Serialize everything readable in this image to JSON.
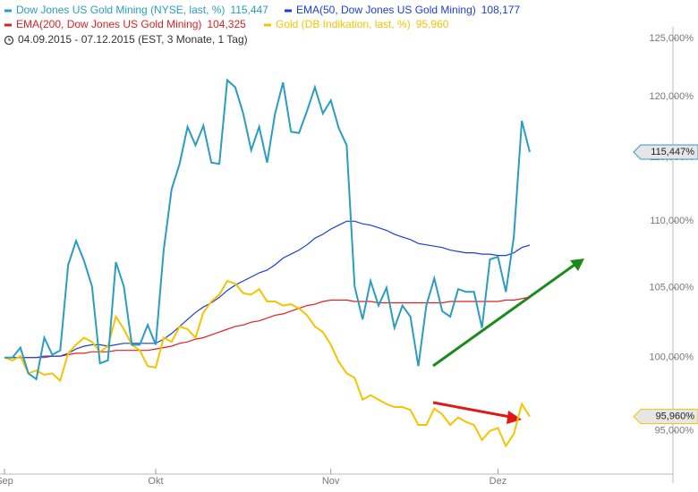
{
  "chart_data": {
    "type": "line",
    "subtitle": "04.09.2015 - 07.12.2015 (EST, 3 Monate, 1 Tag)",
    "log_scale": true,
    "grid": false,
    "ylim": [
      91.6,
      128.4
    ],
    "yticks": [
      {
        "value": 95,
        "label": "95,000%"
      },
      {
        "value": 100,
        "label": "100,000%"
      },
      {
        "value": 105,
        "label": "105,000%"
      },
      {
        "value": 110,
        "label": "110,000%"
      },
      {
        "value": 115,
        "label": "115,000%"
      },
      {
        "value": 120,
        "label": "120,000%"
      },
      {
        "value": 125,
        "label": "125,000%"
      }
    ],
    "categories": [
      "Sep",
      null,
      null,
      null,
      null,
      null,
      null,
      null,
      null,
      null,
      null,
      null,
      null,
      null,
      null,
      null,
      null,
      null,
      null,
      "Okt",
      null,
      null,
      null,
      null,
      null,
      null,
      null,
      null,
      null,
      null,
      null,
      null,
      null,
      null,
      null,
      null,
      null,
      null,
      null,
      null,
      null,
      "Nov",
      null,
      null,
      null,
      null,
      null,
      null,
      null,
      null,
      null,
      null,
      null,
      null,
      null,
      null,
      null,
      null,
      null,
      null,
      null,
      null,
      "Dez",
      null,
      null,
      null,
      null
    ],
    "series": [
      {
        "name": "Dow Jones US Gold Mining (NYSE, last, %)",
        "legend_value": "115,447",
        "end_label": "115,447%",
        "color": "#2a9dc0",
        "values": [
          100.0,
          100.0,
          100.7,
          98.9,
          98.5,
          101.4,
          100.2,
          100.5,
          106.7,
          108.5,
          107.0,
          105.1,
          99.6,
          99.8,
          106.9,
          105.1,
          100.9,
          100.9,
          102.3,
          100.9,
          107.8,
          112.5,
          114.5,
          117.5,
          116.0,
          117.6,
          114.6,
          114.5,
          121.4,
          120.8,
          118.6,
          115.6,
          117.5,
          114.6,
          118.6,
          121.2,
          117.1,
          117.0,
          118.8,
          120.8,
          118.6,
          119.7,
          117.4,
          116.0,
          105.1,
          102.7,
          105.5,
          103.7,
          105.0,
          102.1,
          103.7,
          102.9,
          99.4,
          103.7,
          105.7,
          103.3,
          102.9,
          104.9,
          104.7,
          104.7,
          102.1,
          107.1,
          107.3,
          104.7,
          108.8,
          118.0,
          115.447
        ]
      },
      {
        "name": "EMA(50, Dow Jones US Gold Mining)",
        "legend_value": "108,177",
        "color": "#1a3fd6",
        "values": [
          100.0,
          100.0,
          100.0,
          100.0,
          100.0,
          100.1,
          100.1,
          100.1,
          100.3,
          100.6,
          100.8,
          100.9,
          100.9,
          100.8,
          100.9,
          101.0,
          101.0,
          101.0,
          101.0,
          101.0,
          101.3,
          101.7,
          102.2,
          102.7,
          103.2,
          103.6,
          103.9,
          104.3,
          104.8,
          105.2,
          105.5,
          105.8,
          106.1,
          106.3,
          106.7,
          107.2,
          107.5,
          107.8,
          108.2,
          108.7,
          109.0,
          109.4,
          109.7,
          110.0,
          110.0,
          109.8,
          109.7,
          109.5,
          109.3,
          109.0,
          108.8,
          108.6,
          108.3,
          108.2,
          108.1,
          108.0,
          107.8,
          107.7,
          107.6,
          107.6,
          107.5,
          107.5,
          107.4,
          107.4,
          107.6,
          108.0,
          108.177
        ]
      },
      {
        "name": "EMA(200, Dow Jones US Gold Mining)",
        "legend_value": "104,325",
        "color": "#e02020",
        "values": [
          100.0,
          100.0,
          100.0,
          100.0,
          100.0,
          100.0,
          100.1,
          100.1,
          100.2,
          100.3,
          100.3,
          100.4,
          100.4,
          100.4,
          100.5,
          100.5,
          100.5,
          100.5,
          100.5,
          100.6,
          100.7,
          100.8,
          101.0,
          101.1,
          101.3,
          101.4,
          101.6,
          101.8,
          102.0,
          102.2,
          102.3,
          102.5,
          102.6,
          102.8,
          103.0,
          103.1,
          103.3,
          103.5,
          103.7,
          103.8,
          104.0,
          104.1,
          104.1,
          104.1,
          104.0,
          104.0,
          104.0,
          103.9,
          103.9,
          103.9,
          103.9,
          103.9,
          103.9,
          103.9,
          103.9,
          103.9,
          104.0,
          104.0,
          104.0,
          104.0,
          104.0,
          104.0,
          104.0,
          104.1,
          104.1,
          104.2,
          104.325
        ]
      },
      {
        "name": "Gold (DB Indikation, last, %)",
        "legend_value": "95,960",
        "end_label": "95,960%",
        "color": "#f5c400",
        "values": [
          100.0,
          99.8,
          100.1,
          98.9,
          99.1,
          98.8,
          98.9,
          98.4,
          100.3,
          100.9,
          101.4,
          101.1,
          100.4,
          100.8,
          102.9,
          102.0,
          100.9,
          100.5,
          99.4,
          99.3,
          101.4,
          101.1,
          102.2,
          102.0,
          101.4,
          103.2,
          104.0,
          104.5,
          105.5,
          105.3,
          104.6,
          104.5,
          104.9,
          104.0,
          104.0,
          103.7,
          103.8,
          103.5,
          103.0,
          102.2,
          101.8,
          100.9,
          99.7,
          98.9,
          98.6,
          97.1,
          97.4,
          97.1,
          96.8,
          96.6,
          96.6,
          96.4,
          95.4,
          95.4,
          96.5,
          96.1,
          95.4,
          95.9,
          95.6,
          95.4,
          94.4,
          95.0,
          95.2,
          94.0,
          94.8,
          96.8,
          95.96
        ]
      }
    ]
  }
}
